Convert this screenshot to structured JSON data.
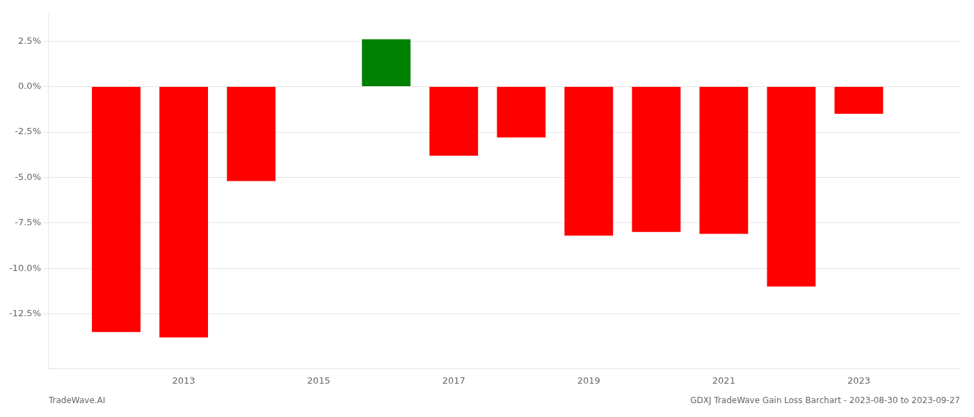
{
  "chart_data": {
    "type": "bar",
    "title": "GDXJ TradeWave Gain Loss Barchart - 2023-08-30 to 2023-09-27",
    "annotations": [
      "TradeWave.AI"
    ],
    "x": [
      2012,
      2013,
      2014,
      2016,
      2017,
      2018,
      2019,
      2020,
      2021,
      2022,
      2023
    ],
    "values": [
      -13.5,
      -13.8,
      -5.2,
      2.6,
      -3.8,
      -2.8,
      -8.2,
      -8.0,
      -8.1,
      -11.0,
      -1.5
    ],
    "colors": [
      "red",
      "red",
      "red",
      "green",
      "red",
      "red",
      "red",
      "red",
      "red",
      "red",
      "red"
    ],
    "xlim": [
      2011.0,
      2024.5
    ],
    "xticks": [
      2013,
      2015,
      2017,
      2019,
      2021,
      2023
    ],
    "ylim": [
      -15.5,
      4.0
    ],
    "yticks": [
      {
        "value": -12.5,
        "label": "-12.5%"
      },
      {
        "value": -10.0,
        "label": "-10.0%"
      },
      {
        "value": -7.5,
        "label": "-7.5%"
      },
      {
        "value": -5.0,
        "label": "-5.0%"
      },
      {
        "value": -2.5,
        "label": "-2.5%"
      },
      {
        "value": 0.0,
        "label": "0.0%"
      },
      {
        "value": 2.5,
        "label": "2.5%"
      }
    ],
    "grid": true
  }
}
